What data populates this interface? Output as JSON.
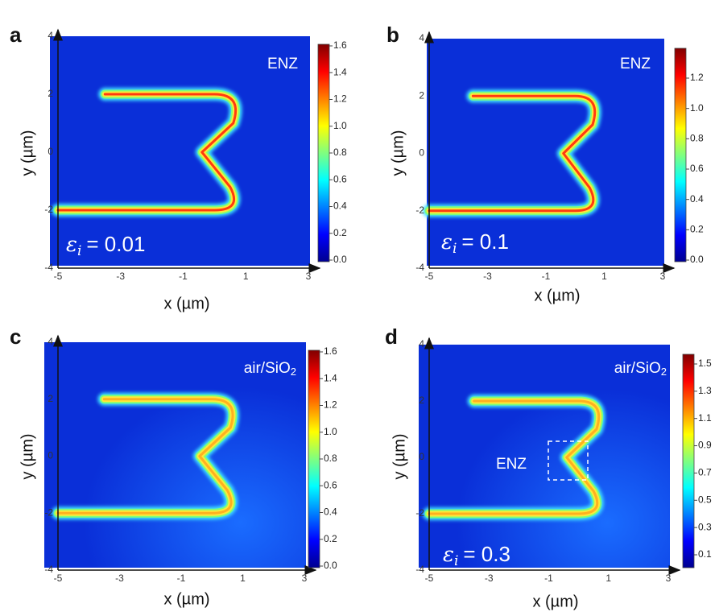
{
  "panels": [
    {
      "letter": "a",
      "tag": "ENZ",
      "epsilon": {
        "symbol": "ε",
        "subscript": "i",
        "value": "= 0.01"
      },
      "x_label": "x (µm)",
      "y_label": "y (µm)",
      "x_ticks": [
        "-5",
        "-3",
        "-1",
        "1",
        "3"
      ],
      "y_ticks": [
        "4",
        "2",
        "0",
        "-2",
        "-4"
      ],
      "colorbar_ticks": [
        "1.6",
        "1.4",
        "1.2",
        "1.0",
        "0.8",
        "0.6",
        "0.4",
        "0.2",
        "0.0"
      ]
    },
    {
      "letter": "b",
      "tag": "ENZ",
      "epsilon": {
        "symbol": "ε",
        "subscript": "i",
        "value": "= 0.1"
      },
      "x_label": "x (µm)",
      "y_label": "y (µm)",
      "x_ticks": [
        "-5",
        "-3",
        "-1",
        "1",
        "3"
      ],
      "y_ticks": [
        "4",
        "2",
        "0",
        "-2",
        "-4"
      ],
      "colorbar_ticks": [
        "1.2",
        "1.0",
        "0.8",
        "0.6",
        "0.4",
        "0.2",
        "0.0"
      ]
    },
    {
      "letter": "c",
      "tag": {
        "text": "air/SiO",
        "subscript": "2"
      },
      "x_label": "x (µm)",
      "y_label": "y (µm)",
      "x_ticks": [
        "-5",
        "-3",
        "-1",
        "1",
        "3"
      ],
      "y_ticks": [
        "4",
        "2",
        "0",
        "-2",
        "-4"
      ],
      "colorbar_ticks": [
        "1.6",
        "1.4",
        "1.2",
        "1.0",
        "0.8",
        "0.6",
        "0.4",
        "0.2",
        "0.0"
      ]
    },
    {
      "letter": "d",
      "tag": {
        "text": "air/SiO",
        "subscript": "2"
      },
      "inset_label": "ENZ",
      "epsilon": {
        "symbol": "ε",
        "subscript": "i",
        "value": "= 0.3"
      },
      "x_label": "x (µm)",
      "y_label": "y (µm)",
      "x_ticks": [
        "-5",
        "-3",
        "-1",
        "1",
        "3"
      ],
      "y_ticks": [
        "4",
        "2",
        "0",
        "-2",
        "-4"
      ],
      "colorbar_ticks": [
        "1.5",
        "1.3",
        "1.1",
        "0.9",
        "0.7",
        "0.5",
        "0.3",
        "0.1"
      ]
    }
  ]
}
